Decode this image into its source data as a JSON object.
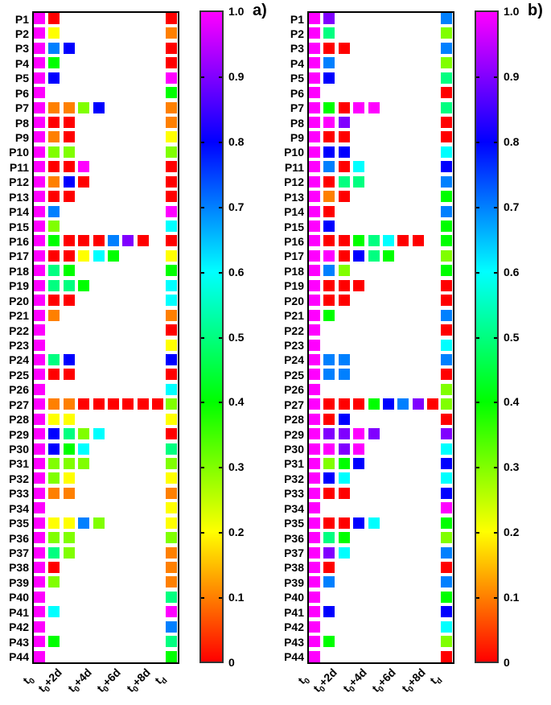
{
  "chart_data": [
    {
      "type": "heatmap",
      "panel_label": "a)",
      "title": "",
      "xlabel": "",
      "ylabel": "",
      "x_tick_labels": [
        "t0",
        "t0+2d",
        "t0+4d",
        "t0+6d",
        "t0+8d",
        "td"
      ],
      "x_columns": [
        "t0",
        "t0+1d",
        "t0+2d",
        "t0+3d",
        "t0+4d",
        "t0+5d",
        "t0+6d",
        "t0+7d",
        "t0+8d",
        "td"
      ],
      "rows": [
        "P1",
        "P2",
        "P3",
        "P4",
        "P5",
        "P6",
        "P7",
        "P8",
        "P9",
        "P10",
        "P11",
        "P12",
        "P13",
        "P14",
        "P15",
        "P16",
        "P17",
        "P18",
        "P19",
        "P20",
        "P21",
        "P22",
        "P23",
        "P24",
        "P25",
        "P26",
        "P27",
        "P28",
        "P29",
        "P30",
        "P31",
        "P32",
        "P33",
        "P34",
        "P35",
        "P36",
        "P37",
        "P38",
        "P39",
        "P40",
        "P41",
        "P42",
        "P43",
        "P44"
      ],
      "colorbar": {
        "min": 0,
        "max": 1.0,
        "ticks": [
          "1.0",
          "0.9",
          "0.8",
          "0.7",
          "0.6",
          "0.5",
          "0.4",
          "0.3",
          "0.2",
          "0.1",
          "0"
        ],
        "colormap": "rainbow (red to magenta)"
      },
      "values": [
        [
          1,
          0,
          null,
          null,
          null,
          null,
          null,
          null,
          null,
          0
        ],
        [
          1,
          0.2,
          null,
          null,
          null,
          null,
          null,
          null,
          null,
          0.1
        ],
        [
          1,
          0.7,
          0.8,
          null,
          null,
          null,
          null,
          null,
          null,
          0
        ],
        [
          1,
          0.4,
          null,
          null,
          null,
          null,
          null,
          null,
          null,
          0
        ],
        [
          1,
          0.8,
          null,
          null,
          null,
          null,
          null,
          null,
          null,
          1.0
        ],
        [
          1,
          null,
          null,
          null,
          null,
          null,
          null,
          null,
          null,
          0.4
        ],
        [
          1,
          0.1,
          0.1,
          0.3,
          0.8,
          null,
          null,
          null,
          null,
          0.1
        ],
        [
          1,
          0,
          0,
          null,
          null,
          null,
          null,
          null,
          null,
          0.1
        ],
        [
          1,
          0.1,
          0,
          null,
          null,
          null,
          null,
          null,
          null,
          0.2
        ],
        [
          1,
          0.3,
          0.3,
          null,
          null,
          null,
          null,
          null,
          null,
          0.3
        ],
        [
          1,
          0,
          0,
          1.0,
          null,
          null,
          null,
          null,
          null,
          0
        ],
        [
          1,
          0.1,
          0.8,
          0,
          null,
          null,
          null,
          null,
          null,
          0
        ],
        [
          1,
          0,
          0,
          null,
          null,
          null,
          null,
          null,
          null,
          0
        ],
        [
          1,
          0.7,
          null,
          null,
          null,
          null,
          null,
          null,
          null,
          1.0
        ],
        [
          1,
          0.3,
          null,
          null,
          null,
          null,
          null,
          null,
          null,
          0.6
        ],
        [
          1,
          0.4,
          0,
          0,
          0,
          0.7,
          0.9,
          0,
          null,
          0
        ],
        [
          1,
          0,
          0,
          0.2,
          0.6,
          0.4,
          null,
          null,
          null,
          0.2
        ],
        [
          1,
          0.5,
          0.4,
          null,
          null,
          null,
          null,
          null,
          null,
          0.4
        ],
        [
          1,
          0.5,
          0.5,
          0.4,
          null,
          null,
          null,
          null,
          null,
          0.6
        ],
        [
          1,
          0,
          0,
          null,
          null,
          null,
          null,
          null,
          null,
          0.6
        ],
        [
          1,
          0.1,
          null,
          null,
          null,
          null,
          null,
          null,
          null,
          0.1
        ],
        [
          1,
          null,
          null,
          null,
          null,
          null,
          null,
          null,
          null,
          0
        ],
        [
          1,
          null,
          null,
          null,
          null,
          null,
          null,
          null,
          null,
          0.2
        ],
        [
          1,
          0.5,
          0.8,
          null,
          null,
          null,
          null,
          null,
          null,
          0.8
        ],
        [
          1,
          0,
          0,
          null,
          null,
          null,
          null,
          null,
          null,
          0
        ],
        [
          1,
          null,
          null,
          null,
          null,
          null,
          null,
          null,
          null,
          0.6
        ],
        [
          1,
          0.1,
          0.1,
          0,
          0,
          0,
          0,
          0,
          0,
          0.3
        ],
        [
          1,
          0.2,
          0.2,
          null,
          null,
          null,
          null,
          null,
          null,
          0.2
        ],
        [
          1,
          0.8,
          0.5,
          0.3,
          0.6,
          null,
          null,
          null,
          null,
          0
        ],
        [
          1,
          0.8,
          0.4,
          0.6,
          null,
          null,
          null,
          null,
          null,
          0.5
        ],
        [
          1,
          0.3,
          0.3,
          0.3,
          null,
          null,
          null,
          null,
          null,
          0.3
        ],
        [
          1,
          0.3,
          0.2,
          null,
          null,
          null,
          null,
          null,
          null,
          0.2
        ],
        [
          1,
          0.1,
          0.1,
          null,
          null,
          null,
          null,
          null,
          null,
          0.1
        ],
        [
          1,
          null,
          null,
          null,
          null,
          null,
          null,
          null,
          null,
          0.2
        ],
        [
          1,
          0.2,
          0.2,
          0.7,
          0.3,
          null,
          null,
          null,
          null,
          0.2
        ],
        [
          1,
          0.3,
          0.3,
          null,
          null,
          null,
          null,
          null,
          null,
          0.3
        ],
        [
          1,
          0.5,
          0.3,
          null,
          null,
          null,
          null,
          null,
          null,
          0.1
        ],
        [
          1,
          0,
          null,
          null,
          null,
          null,
          null,
          null,
          null,
          0.1
        ],
        [
          1,
          0.3,
          null,
          null,
          null,
          null,
          null,
          null,
          null,
          0.1
        ],
        [
          1,
          null,
          null,
          null,
          null,
          null,
          null,
          null,
          null,
          0.5
        ],
        [
          1,
          0.6,
          null,
          null,
          null,
          null,
          null,
          null,
          null,
          1.0
        ],
        [
          1,
          null,
          null,
          null,
          null,
          null,
          null,
          null,
          null,
          0.7
        ],
        [
          1,
          0.4,
          null,
          null,
          null,
          null,
          null,
          null,
          null,
          0.5
        ],
        [
          1,
          null,
          null,
          null,
          null,
          null,
          null,
          null,
          null,
          0.4
        ]
      ]
    },
    {
      "type": "heatmap",
      "panel_label": "b)",
      "title": "",
      "xlabel": "",
      "ylabel": "",
      "x_tick_labels": [
        "t0",
        "t0+2d",
        "t0+4d",
        "t0+6d",
        "t0+8d",
        "td"
      ],
      "x_columns": [
        "t0",
        "t0+1d",
        "t0+2d",
        "t0+3d",
        "t0+4d",
        "t0+5d",
        "t0+6d",
        "t0+7d",
        "t0+8d",
        "td"
      ],
      "rows": [
        "P1",
        "P2",
        "P3",
        "P4",
        "P5",
        "P6",
        "P7",
        "P8",
        "P9",
        "P10",
        "P11",
        "P12",
        "P13",
        "P14",
        "P15",
        "P16",
        "P17",
        "P18",
        "P19",
        "P20",
        "P21",
        "P22",
        "P23",
        "P24",
        "P25",
        "P26",
        "P27",
        "P28",
        "P29",
        "P30",
        "P31",
        "P32",
        "P33",
        "P34",
        "P35",
        "P36",
        "P37",
        "P38",
        "P39",
        "P40",
        "P41",
        "P42",
        "P43",
        "P44"
      ],
      "colorbar": {
        "min": 0,
        "max": 1.0,
        "ticks": [
          "1.0",
          "0.9",
          "0.8",
          "0.7",
          "0.6",
          "0.5",
          "0.4",
          "0.3",
          "0.2",
          "0.1",
          "0"
        ],
        "colormap": "rainbow (red to magenta)"
      },
      "values": [
        [
          1,
          0.9,
          null,
          null,
          null,
          null,
          null,
          null,
          null,
          0.7
        ],
        [
          1,
          0.5,
          null,
          null,
          null,
          null,
          null,
          null,
          null,
          0.3
        ],
        [
          1,
          0,
          0,
          null,
          null,
          null,
          null,
          null,
          null,
          0.7
        ],
        [
          1,
          0.7,
          null,
          null,
          null,
          null,
          null,
          null,
          null,
          0.3
        ],
        [
          1,
          0.8,
          null,
          null,
          null,
          null,
          null,
          null,
          null,
          0.5
        ],
        [
          1,
          null,
          null,
          null,
          null,
          null,
          null,
          null,
          null,
          0
        ],
        [
          1,
          0.4,
          0,
          1.0,
          1.0,
          null,
          null,
          null,
          null,
          0.5
        ],
        [
          1,
          1.0,
          0.9,
          null,
          null,
          null,
          null,
          null,
          null,
          0
        ],
        [
          1,
          0,
          0,
          null,
          null,
          null,
          null,
          null,
          null,
          0
        ],
        [
          1,
          0.8,
          0.8,
          null,
          null,
          null,
          null,
          null,
          null,
          0.6
        ],
        [
          1,
          0.7,
          0,
          0.6,
          null,
          null,
          null,
          null,
          null,
          0.8
        ],
        [
          1,
          0,
          0.5,
          0.5,
          null,
          null,
          null,
          null,
          null,
          0.7
        ],
        [
          1,
          0.1,
          0,
          null,
          null,
          null,
          null,
          null,
          null,
          0.4
        ],
        [
          1,
          0,
          null,
          null,
          null,
          null,
          null,
          null,
          null,
          0.7
        ],
        [
          1,
          0.8,
          null,
          null,
          null,
          null,
          null,
          null,
          null,
          0.4
        ],
        [
          1,
          0,
          0,
          0.4,
          0.5,
          0.6,
          0,
          0,
          null,
          0.4
        ],
        [
          1,
          1.0,
          0,
          0.8,
          0.5,
          0.4,
          null,
          null,
          null,
          0.3
        ],
        [
          1,
          0.7,
          0.3,
          null,
          null,
          null,
          null,
          null,
          null,
          0.4
        ],
        [
          1,
          0,
          0,
          0,
          null,
          null,
          null,
          null,
          null,
          0
        ],
        [
          1,
          0,
          0,
          null,
          null,
          null,
          null,
          null,
          null,
          0
        ],
        [
          1,
          0.4,
          null,
          null,
          null,
          null,
          null,
          null,
          null,
          0.7
        ],
        [
          1,
          null,
          null,
          null,
          null,
          null,
          null,
          null,
          null,
          0
        ],
        [
          1,
          null,
          null,
          null,
          null,
          null,
          null,
          null,
          null,
          0.6
        ],
        [
          1,
          0.7,
          0.7,
          null,
          null,
          null,
          null,
          null,
          null,
          0.7
        ],
        [
          1,
          0.7,
          0.7,
          null,
          null,
          null,
          null,
          null,
          null,
          0
        ],
        [
          1,
          null,
          null,
          null,
          null,
          null,
          null,
          null,
          null,
          0.3
        ],
        [
          1,
          0,
          0,
          0,
          0.4,
          0.8,
          0.7,
          0.9,
          0,
          0.3
        ],
        [
          1,
          0,
          0.8,
          null,
          null,
          null,
          null,
          null,
          null,
          0
        ],
        [
          1,
          0.9,
          0.9,
          1.0,
          0.9,
          null,
          null,
          null,
          null,
          0.9
        ],
        [
          1,
          1.0,
          0.9,
          1.0,
          null,
          null,
          null,
          null,
          null,
          0.6
        ],
        [
          1,
          0.3,
          0.4,
          0.8,
          null,
          null,
          null,
          null,
          null,
          0.8
        ],
        [
          1,
          0.8,
          0.6,
          null,
          null,
          null,
          null,
          null,
          null,
          0.6
        ],
        [
          1,
          0,
          0,
          null,
          null,
          null,
          null,
          null,
          null,
          0.8
        ],
        [
          1,
          null,
          null,
          null,
          null,
          null,
          null,
          null,
          null,
          1.0
        ],
        [
          1,
          0,
          0,
          0.8,
          0.6,
          null,
          null,
          null,
          null,
          0.4
        ],
        [
          1,
          0.5,
          0.4,
          null,
          null,
          null,
          null,
          null,
          null,
          0.3
        ],
        [
          1,
          0.9,
          0.6,
          null,
          null,
          null,
          null,
          null,
          null,
          0.7
        ],
        [
          1,
          0,
          null,
          null,
          null,
          null,
          null,
          null,
          null,
          0
        ],
        [
          1,
          0.7,
          null,
          null,
          null,
          null,
          null,
          null,
          null,
          0.7
        ],
        [
          1,
          null,
          null,
          null,
          null,
          null,
          null,
          null,
          null,
          0.4
        ],
        [
          1,
          0.8,
          null,
          null,
          null,
          null,
          null,
          null,
          null,
          0.8
        ],
        [
          1,
          null,
          null,
          null,
          null,
          null,
          null,
          null,
          null,
          0.6
        ],
        [
          1,
          0.4,
          null,
          null,
          null,
          null,
          null,
          null,
          null,
          0.3
        ],
        [
          1,
          null,
          null,
          null,
          null,
          null,
          null,
          null,
          null,
          0
        ]
      ]
    }
  ],
  "panels": [
    {
      "label": "a)",
      "colorbar_ticks": [
        "1.0",
        "0.9",
        "0.8",
        "0.7",
        "0.6",
        "0.5",
        "0.4",
        "0.3",
        "0.2",
        "0.1",
        "0"
      ]
    },
    {
      "label": "b)",
      "colorbar_ticks": [
        "1.0",
        "0.9",
        "0.8",
        "0.7",
        "0.6",
        "0.5",
        "0.4",
        "0.3",
        "0.2",
        "0.1",
        "0"
      ]
    }
  ]
}
